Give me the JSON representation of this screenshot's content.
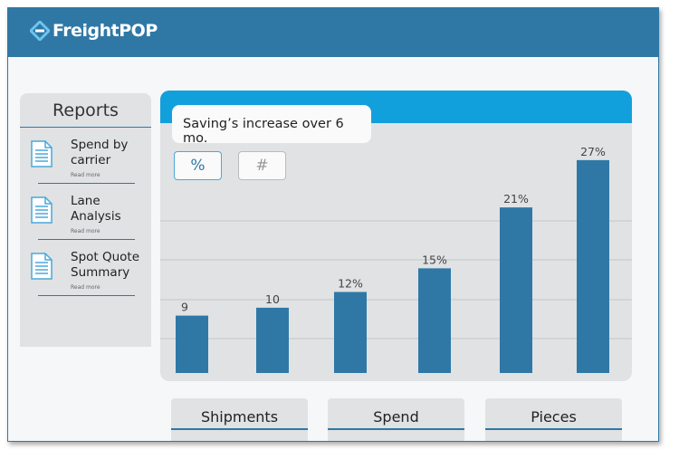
{
  "header": {
    "brand": "FreightPOP"
  },
  "sidebar": {
    "title": "Reports",
    "items": [
      {
        "label": "Spend by carrier",
        "line1": "Spend by",
        "line2": "carrier",
        "link": "Read more"
      },
      {
        "label": "Lane Analysis",
        "line1": "Lane",
        "line2": "Analysis",
        "link": "Read more"
      },
      {
        "label": "Spot Quote Summary",
        "line1": "Spot Quote",
        "line2": "Summary",
        "link": "Read more"
      }
    ]
  },
  "toggle": {
    "percent": "%",
    "number": "#"
  },
  "chart_data": {
    "type": "bar",
    "title": "Saving’s increase over 6 mo.",
    "values": [
      9,
      10,
      12,
      15,
      21,
      27
    ],
    "labels": [
      "9",
      "10",
      "12%",
      "15%",
      "21%",
      "27%"
    ],
    "ylim": [
      0,
      28
    ],
    "grid": true,
    "color": "#2f78a6"
  },
  "cards": [
    "Shipments",
    "Spend",
    "Pieces"
  ]
}
